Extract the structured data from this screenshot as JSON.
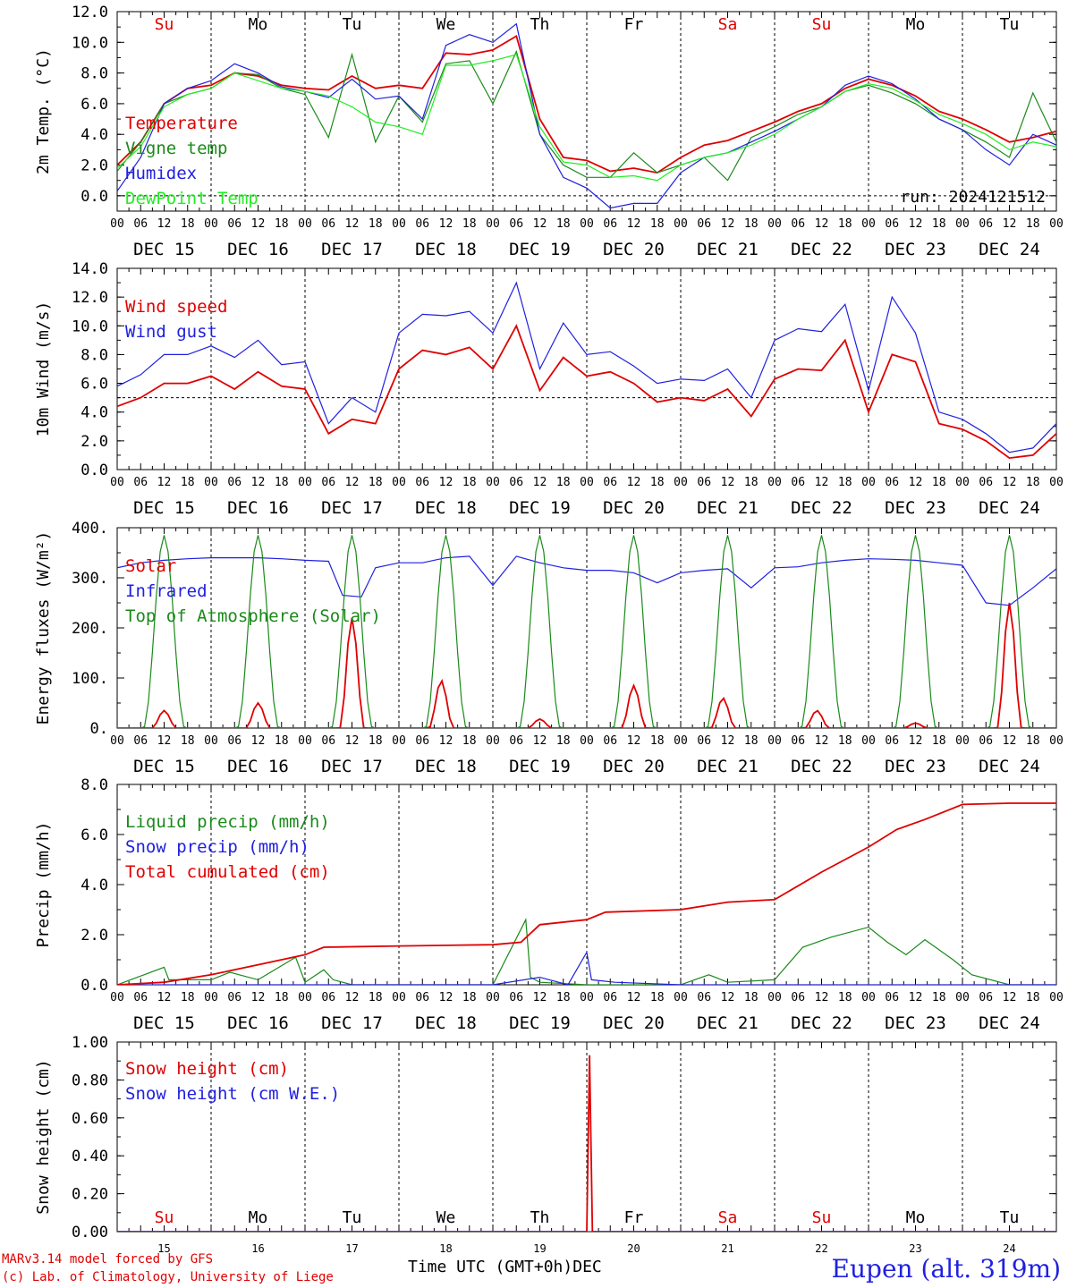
{
  "colors": {
    "red": "#e00000",
    "green": "#1a8a1a",
    "lightgreen": "#22ee22",
    "blue": "#2020e0",
    "black": "#000000"
  },
  "time_axis": {
    "day_names": [
      "Su",
      "Mo",
      "Tu",
      "We",
      "Th",
      "Fr",
      "Sa",
      "Su",
      "Mo",
      "Tu"
    ],
    "day_name_colors": [
      "red",
      "black",
      "black",
      "black",
      "black",
      "black",
      "red",
      "red",
      "black",
      "black"
    ],
    "date_labels": [
      "DEC 15",
      "DEC 16",
      "DEC 17",
      "DEC 18",
      "DEC 19",
      "DEC 20",
      "DEC 21",
      "DEC 22",
      "DEC 23",
      "DEC 24"
    ],
    "day_numbers": [
      "15",
      "16",
      "17",
      "18",
      "19",
      "20",
      "21",
      "22",
      "23",
      "24"
    ],
    "hour_ticks": [
      "00",
      "06",
      "12",
      "18"
    ],
    "final_tick": "00",
    "start": "2024-12-15 00 UTC",
    "end": "2024-12-25 00 UTC"
  },
  "footer": {
    "model": "MARv3.14 model forced by GFS",
    "credit": "(c) Lab. of Climatology, University of Liege",
    "xaxis_title": "Time UTC (GMT+0h)",
    "xaxis_month": "DEC",
    "station": "Eupen (alt. 319m)"
  },
  "chart_data": [
    {
      "type": "line",
      "ylabel": "2m Temp. (°C)",
      "ylim": [
        -1,
        12
      ],
      "yticks": [
        "12.0",
        "10.0",
        "8.0",
        "6.0",
        "4.0",
        "2.0",
        "0.0"
      ],
      "reference_line": 0,
      "annotation": "run: 2024121512",
      "x_unit": "day",
      "series": [
        {
          "name": "Temperature",
          "color": "red",
          "x": [
            0,
            0.25,
            0.5,
            0.75,
            1,
            1.25,
            1.5,
            1.75,
            2,
            2.25,
            2.5,
            2.75,
            3,
            3.25,
            3.5,
            3.75,
            4,
            4.25,
            4.5,
            4.75,
            5,
            5.25,
            5.5,
            5.75,
            6,
            6.25,
            6.5,
            6.75,
            7,
            7.25,
            7.5,
            7.75,
            8,
            8.25,
            8.5,
            8.75,
            9,
            9.25,
            9.5,
            9.75,
            10
          ],
          "values": [
            2,
            3.5,
            6,
            7,
            7.2,
            8,
            7.8,
            7.2,
            7,
            6.9,
            7.8,
            7,
            7.2,
            7,
            9.3,
            9.2,
            9.5,
            10.4,
            5,
            2.5,
            2.3,
            1.6,
            1.8,
            1.5,
            2.5,
            3.3,
            3.6,
            4.2,
            4.8,
            5.5,
            6,
            7,
            7.6,
            7.2,
            6.5,
            5.5,
            5,
            4.3,
            3.5,
            3.8,
            4.2
          ]
        },
        {
          "name": "Vigne temp",
          "color": "green",
          "x": [
            0,
            0.25,
            0.5,
            0.75,
            1,
            1.25,
            1.5,
            1.75,
            2,
            2.25,
            2.5,
            2.75,
            3,
            3.25,
            3.5,
            3.75,
            4,
            4.25,
            4.5,
            4.75,
            5,
            5.25,
            5.5,
            5.75,
            6,
            6.25,
            6.5,
            6.75,
            7,
            7.25,
            7.5,
            7.75,
            8,
            8.25,
            8.5,
            8.75,
            9,
            9.25,
            9.5,
            9.75,
            10
          ],
          "values": [
            1.6,
            3.5,
            6,
            6.6,
            7,
            8,
            7.9,
            7,
            6.6,
            3.8,
            9.2,
            3.5,
            6.5,
            4.8,
            8.6,
            8.8,
            6,
            9.4,
            4,
            2,
            1.2,
            1.2,
            2.8,
            1.5,
            2,
            2.5,
            1,
            3.8,
            4.5,
            5.3,
            5.8,
            6.8,
            7.2,
            6.7,
            6,
            5,
            4.3,
            3.5,
            2.5,
            6.7,
            3.5
          ]
        },
        {
          "name": "Humidex",
          "color": "blue",
          "x": [
            0,
            0.25,
            0.5,
            0.75,
            1,
            1.25,
            1.5,
            1.75,
            2,
            2.25,
            2.5,
            2.75,
            3,
            3.25,
            3.5,
            3.75,
            4,
            4.25,
            4.5,
            4.75,
            5,
            5.25,
            5.5,
            5.75,
            6,
            6.25,
            6.5,
            6.75,
            7,
            7.25,
            7.5,
            7.75,
            8,
            8.25,
            8.5,
            8.75,
            9,
            9.25,
            9.5,
            9.75,
            10
          ],
          "values": [
            0.3,
            2.5,
            6,
            7,
            7.5,
            8.6,
            8,
            7.1,
            6.8,
            6.4,
            7.6,
            6.3,
            6.5,
            5,
            9.8,
            10.5,
            10,
            11.2,
            4,
            1.2,
            0.5,
            -0.8,
            -0.5,
            -0.5,
            1.5,
            2.5,
            2.8,
            3.5,
            4.2,
            5,
            5.8,
            7.2,
            7.8,
            7.3,
            6.3,
            5,
            4.3,
            3,
            2,
            4,
            3.3
          ]
        },
        {
          "name": "DewPoint Temp",
          "color": "lightgreen",
          "x": [
            0,
            0.25,
            0.5,
            0.75,
            1,
            1.25,
            1.5,
            1.75,
            2,
            2.25,
            2.5,
            2.75,
            3,
            3.25,
            3.5,
            3.75,
            4,
            4.25,
            4.5,
            4.75,
            5,
            5.25,
            5.5,
            5.75,
            6,
            6.25,
            6.5,
            6.75,
            7,
            7.25,
            7.5,
            7.75,
            8,
            8.25,
            8.5,
            8.75,
            9,
            9.25,
            9.5,
            9.75,
            10
          ],
          "values": [
            1.8,
            3.2,
            5.8,
            6.6,
            7,
            8,
            7.5,
            7,
            6.8,
            6.5,
            5.8,
            4.8,
            4.5,
            4,
            8.5,
            8.5,
            8.8,
            9.2,
            4.5,
            2.2,
            2,
            1.2,
            1.3,
            1,
            2,
            2.5,
            2.8,
            3.3,
            4,
            5,
            5.8,
            6.8,
            7.3,
            7,
            6.2,
            5.3,
            4.7,
            4,
            3,
            3.5,
            3.2
          ]
        }
      ]
    },
    {
      "type": "line",
      "ylabel": "10m Wind (m/s)",
      "ylim": [
        0,
        14
      ],
      "yticks": [
        "14.0",
        "12.0",
        "10.0",
        "8.0",
        "6.0",
        "4.0",
        "2.0",
        "0.0"
      ],
      "reference_line": 5,
      "x_unit": "day",
      "series": [
        {
          "name": "Wind speed",
          "color": "red",
          "x": [
            0,
            0.25,
            0.5,
            0.75,
            1,
            1.25,
            1.5,
            1.75,
            2,
            2.25,
            2.5,
            2.75,
            3,
            3.25,
            3.5,
            3.75,
            4,
            4.25,
            4.5,
            4.75,
            5,
            5.25,
            5.5,
            5.75,
            6,
            6.25,
            6.5,
            6.75,
            7,
            7.25,
            7.5,
            7.75,
            8,
            8.25,
            8.5,
            8.75,
            9,
            9.25,
            9.5,
            9.75,
            10
          ],
          "values": [
            4.4,
            5,
            6,
            6,
            6.5,
            5.6,
            6.8,
            5.8,
            5.6,
            2.5,
            3.5,
            3.2,
            7,
            8.3,
            8,
            8.5,
            7,
            10,
            5.5,
            7.8,
            6.5,
            6.8,
            6,
            4.7,
            5,
            4.8,
            5.6,
            3.7,
            6.3,
            7,
            6.9,
            9,
            4,
            8,
            7.5,
            3.2,
            2.8,
            2,
            0.8,
            1,
            2.5
          ]
        },
        {
          "name": "Wind gust",
          "color": "blue",
          "x": [
            0,
            0.25,
            0.5,
            0.75,
            1,
            1.25,
            1.5,
            1.75,
            2,
            2.25,
            2.5,
            2.75,
            3,
            3.25,
            3.5,
            3.75,
            4,
            4.25,
            4.5,
            4.75,
            5,
            5.25,
            5.5,
            5.75,
            6,
            6.25,
            6.5,
            6.75,
            7,
            7.25,
            7.5,
            7.75,
            8,
            8.25,
            8.5,
            8.75,
            9,
            9.25,
            9.5,
            9.75,
            10
          ],
          "values": [
            5.8,
            6.6,
            8,
            8,
            8.6,
            7.8,
            9,
            7.3,
            7.5,
            3.2,
            5,
            4,
            9.5,
            10.8,
            10.7,
            11,
            9.5,
            13,
            7,
            10.2,
            8,
            8.2,
            7.2,
            6,
            6.3,
            6.2,
            7,
            5,
            9,
            9.8,
            9.6,
            11.5,
            5.5,
            12,
            9.5,
            4,
            3.5,
            2.5,
            1.2,
            1.5,
            3.2
          ]
        }
      ]
    },
    {
      "type": "line",
      "ylabel": "Energy fluxes (W/m²)",
      "ylim": [
        0,
        400
      ],
      "yticks": [
        "400.",
        "300.",
        "200.",
        "100.",
        "0."
      ],
      "x_unit": "day",
      "series": [
        {
          "name": "Solar",
          "color": "red",
          "peaks": [
            {
              "day": 0.5,
              "value": 35
            },
            {
              "day": 1.5,
              "value": 50
            },
            {
              "day": 2.5,
              "value": 220
            },
            {
              "day": 3.45,
              "value": 95
            },
            {
              "day": 4.5,
              "value": 18
            },
            {
              "day": 5.5,
              "value": 85
            },
            {
              "day": 6.45,
              "value": 60
            },
            {
              "day": 7.45,
              "value": 35
            },
            {
              "day": 8.5,
              "value": 10
            },
            {
              "day": 9.5,
              "value": 250
            }
          ]
        },
        {
          "name": "Infrared",
          "color": "blue",
          "x": [
            0,
            0.25,
            0.5,
            0.75,
            1,
            1.25,
            1.5,
            1.75,
            2,
            2.25,
            2.4,
            2.6,
            2.75,
            3,
            3.25,
            3.5,
            3.75,
            4,
            4.25,
            4.5,
            4.75,
            5,
            5.25,
            5.5,
            5.75,
            6,
            6.25,
            6.5,
            6.75,
            7,
            7.25,
            7.5,
            7.75,
            8,
            8.25,
            8.5,
            8.75,
            9,
            9.25,
            9.5,
            9.75,
            10
          ],
          "values": [
            320,
            330,
            335,
            338,
            340,
            340,
            340,
            338,
            335,
            333,
            265,
            262,
            320,
            330,
            330,
            340,
            343,
            285,
            343,
            330,
            320,
            315,
            315,
            310,
            290,
            310,
            315,
            318,
            280,
            320,
            322,
            330,
            335,
            338,
            337,
            335,
            330,
            325,
            250,
            245,
            280,
            318
          ]
        },
        {
          "name": "Top of Atmosphere (Solar)",
          "color": "green",
          "peaks": [
            {
              "day": 0.5,
              "value": 385
            },
            {
              "day": 1.5,
              "value": 385
            },
            {
              "day": 2.5,
              "value": 385
            },
            {
              "day": 3.5,
              "value": 385
            },
            {
              "day": 4.5,
              "value": 385
            },
            {
              "day": 5.5,
              "value": 385
            },
            {
              "day": 6.5,
              "value": 385
            },
            {
              "day": 7.5,
              "value": 385
            },
            {
              "day": 8.5,
              "value": 385
            },
            {
              "day": 9.5,
              "value": 385
            }
          ]
        }
      ]
    },
    {
      "type": "line",
      "ylabel": "Precip (mm/h)",
      "ylim": [
        0,
        8
      ],
      "yticks": [
        "8.0",
        "6.0",
        "4.0",
        "2.0",
        "0.0"
      ],
      "x_unit": "day",
      "series": [
        {
          "name": "Liquid precip (mm/h)",
          "color": "green",
          "x": [
            0,
            0.5,
            0.55,
            1,
            1.2,
            1.5,
            1.9,
            2.0,
            2.2,
            2.3,
            2.5,
            3,
            4,
            4.35,
            4.4,
            4.5,
            5,
            6,
            6.3,
            6.5,
            7,
            7.3,
            7.6,
            8.0,
            8.2,
            8.4,
            8.6,
            8.9,
            9.1,
            9.5,
            10
          ],
          "values": [
            0,
            0.7,
            0.2,
            0.2,
            0.5,
            0.2,
            1.1,
            0.1,
            0.6,
            0.2,
            0,
            0,
            0,
            2.6,
            0.3,
            0.1,
            0,
            0,
            0.4,
            0.1,
            0.2,
            1.5,
            1.9,
            2.3,
            1.7,
            1.2,
            1.8,
            1.0,
            0.4,
            0,
            0
          ]
        },
        {
          "name": "Snow precip (mm/h)",
          "color": "blue",
          "x": [
            0,
            4,
            4.5,
            4.8,
            5.0,
            5.05,
            5.3,
            6,
            10
          ],
          "values": [
            0,
            0,
            0.3,
            0,
            1.3,
            0.2,
            0.1,
            0,
            0
          ]
        },
        {
          "name": "Total cumulated (cm)",
          "color": "red",
          "x": [
            0,
            0.5,
            1,
            1.5,
            2,
            2.2,
            3,
            4,
            4.3,
            4.5,
            5,
            5.2,
            6,
            6.5,
            7,
            7.5,
            8,
            8.3,
            8.6,
            9,
            9.5,
            10
          ],
          "values": [
            0,
            0.1,
            0.4,
            0.8,
            1.2,
            1.5,
            1.55,
            1.6,
            1.7,
            2.4,
            2.6,
            2.9,
            3,
            3.3,
            3.4,
            4.5,
            5.5,
            6.2,
            6.6,
            7.2,
            7.25,
            7.25
          ]
        }
      ]
    },
    {
      "type": "line",
      "ylabel": "Snow height (cm)",
      "ylim": [
        0,
        1
      ],
      "yticks": [
        "1.00",
        "0.80",
        "0.60",
        "0.40",
        "0.20",
        "0.00"
      ],
      "x_unit": "day",
      "series": [
        {
          "name": "Snow height (cm)",
          "color": "red",
          "x": [
            0,
            5.0,
            5.03,
            5.06,
            10
          ],
          "values": [
            0,
            0,
            0.93,
            0,
            0
          ]
        },
        {
          "name": "Snow height (cm W.E.)",
          "color": "blue",
          "x": [
            0,
            10
          ],
          "values": [
            0,
            0
          ]
        }
      ]
    }
  ]
}
